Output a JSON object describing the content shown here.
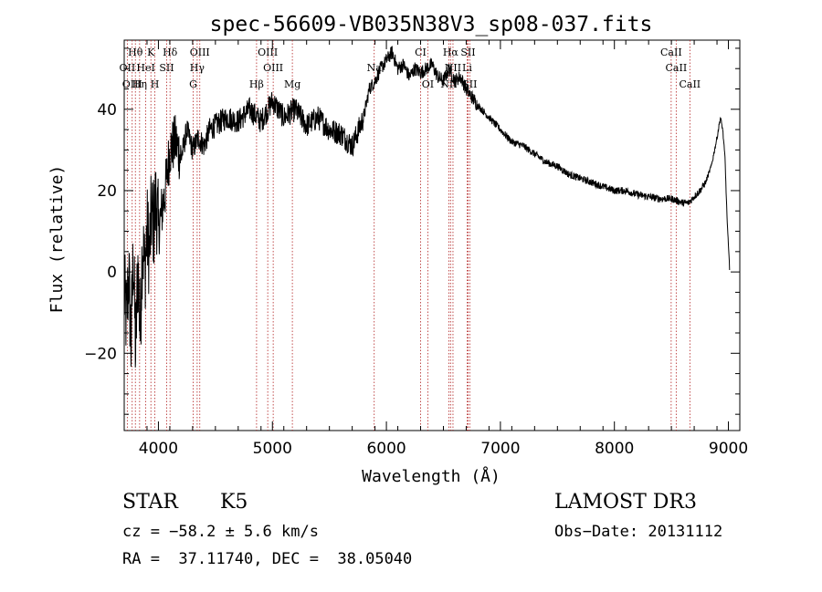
{
  "chart_data": {
    "type": "line",
    "title": "spec-56609-VB035N38V3_sp08-037.fits",
    "xlabel": "Wavelength (Å)",
    "ylabel": "Flux (relative)",
    "xlim": [
      3700,
      9100
    ],
    "ylim": [
      -39,
      57
    ],
    "x_ticks": [
      4000,
      5000,
      6000,
      7000,
      8000,
      9000
    ],
    "x_tick_labels": [
      "4000",
      "5000",
      "6000",
      "7000",
      "8000",
      "9000"
    ],
    "y_ticks": [
      -20,
      0,
      20,
      40
    ],
    "y_tick_labels": [
      "−20",
      "0",
      "20",
      "40"
    ],
    "grid": false,
    "spectrum": {
      "name": "flux",
      "x": [
        3700,
        3720,
        3740,
        3760,
        3780,
        3800,
        3820,
        3840,
        3860,
        3880,
        3900,
        3920,
        3940,
        3960,
        3980,
        4000,
        4030,
        4060,
        4100,
        4150,
        4200,
        4250,
        4300,
        4350,
        4400,
        4450,
        4500,
        4600,
        4700,
        4800,
        4900,
        5000,
        5100,
        5200,
        5300,
        5400,
        5500,
        5600,
        5700,
        5800,
        5850,
        5900,
        5950,
        6000,
        6050,
        6100,
        6150,
        6200,
        6250,
        6300,
        6350,
        6400,
        6450,
        6500,
        6550,
        6600,
        6650,
        6700,
        6750,
        6800,
        6900,
        7000,
        7100,
        7200,
        7300,
        7400,
        7500,
        7600,
        7700,
        7800,
        7900,
        8000,
        8100,
        8200,
        8300,
        8400,
        8500,
        8550,
        8600,
        8650,
        8700,
        8750,
        8800,
        8850,
        8900,
        8930,
        8950,
        8970,
        8990,
        9010
      ],
      "values": [
        -5,
        -12,
        0,
        -18,
        5,
        -20,
        2,
        -15,
        8,
        0,
        10,
        5,
        14,
        12,
        18,
        10,
        15,
        20,
        30,
        32,
        28,
        35,
        30,
        33,
        31,
        35,
        36,
        38,
        37,
        40,
        37,
        42,
        38,
        40,
        36,
        38,
        35,
        34,
        31,
        38,
        45,
        47,
        50,
        52,
        54,
        50,
        51,
        48,
        50,
        49,
        50,
        51,
        48,
        47,
        50,
        47,
        48,
        45,
        43,
        41,
        38,
        35,
        32,
        31,
        29,
        27,
        26,
        24,
        23,
        22,
        21,
        20,
        20,
        19,
        18.5,
        18,
        18,
        17.5,
        17,
        17,
        18.5,
        20,
        22,
        26,
        33,
        38,
        35,
        28,
        12,
        1
      ]
    },
    "spectral_lines": [
      {
        "label": "Hθ",
        "x": 3798,
        "row": 1
      },
      {
        "label": "K",
        "x": 3934,
        "row": 1
      },
      {
        "label": "Hδ",
        "x": 4102,
        "row": 1
      },
      {
        "label": "OIII",
        "x": 4363,
        "row": 1
      },
      {
        "label": "OIII",
        "x": 4959,
        "row": 1
      },
      {
        "label": "CI",
        "x": 6300,
        "row": 1
      },
      {
        "label": "Hα",
        "x": 6563,
        "row": 1
      },
      {
        "label": "SII",
        "x": 6716,
        "row": 1
      },
      {
        "label": "CaII",
        "x": 8498,
        "row": 1
      },
      {
        "label": "OII",
        "x": 3727,
        "row": 2
      },
      {
        "label": "HeI",
        "x": 3889,
        "row": 2
      },
      {
        "label": "SII",
        "x": 4072,
        "row": 2
      },
      {
        "label": "Hγ",
        "x": 4340,
        "row": 2
      },
      {
        "label": "OIII",
        "x": 5007,
        "row": 2
      },
      {
        "label": "Na",
        "x": 5893,
        "row": 2
      },
      {
        "label": "NII",
        "x": 6584,
        "row": 2
      },
      {
        "label": "Li",
        "x": 6708,
        "row": 2
      },
      {
        "label": "CaII",
        "x": 8542,
        "row": 2
      },
      {
        "label": "OIII",
        "x": 3770,
        "row": 3
      },
      {
        "label": "Hη",
        "x": 3835,
        "row": 3
      },
      {
        "label": "H",
        "x": 3969,
        "row": 3
      },
      {
        "label": "G",
        "x": 4305,
        "row": 3
      },
      {
        "label": "Hβ",
        "x": 4861,
        "row": 3
      },
      {
        "label": "Mg",
        "x": 5175,
        "row": 3
      },
      {
        "label": "OI",
        "x": 6363,
        "row": 3
      },
      {
        "label": "NII",
        "x": 6548,
        "row": 3
      },
      {
        "label": "SII",
        "x": 6731,
        "row": 3
      },
      {
        "label": "CaII",
        "x": 8662,
        "row": 3
      }
    ]
  },
  "info": {
    "object_class": "STAR",
    "subclass": "K5",
    "survey": "LAMOST DR3",
    "cz": "cz = −58.2 ± 5.6 km/s",
    "obs_date": "Obs−Date: 20131112",
    "coords": "RA =  37.11740, DEC =  38.05040"
  }
}
